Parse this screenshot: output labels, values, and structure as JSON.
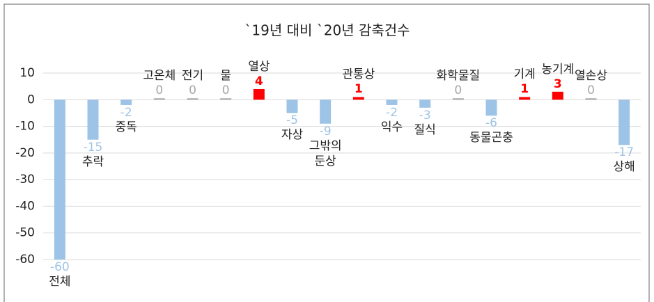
{
  "chart_data": {
    "type": "bar",
    "title": "`19년 대비 `20년 감축건수",
    "categories": [
      "전체",
      "추락",
      "중독",
      "고온체",
      "전기",
      "물",
      "열상",
      "자상",
      "그밖의\n둔상",
      "관통상",
      "익수",
      "질식",
      "화학물질",
      "동물곤충",
      "기계",
      "농기계",
      "열손상",
      "상해"
    ],
    "values": [
      -60,
      -15,
      -2,
      0,
      0,
      0,
      4,
      -5,
      -9,
      1,
      -2,
      -3,
      0,
      -6,
      1,
      3,
      0,
      -17
    ],
    "color": "#9dc3e6",
    "positive_color": "#ff0000",
    "zero_color": "#a6a6a6",
    "ylim": [
      -60,
      10
    ],
    "yticks": [
      10,
      0,
      -10,
      -20,
      -30,
      -40,
      -50,
      -60
    ],
    "grid": true
  }
}
